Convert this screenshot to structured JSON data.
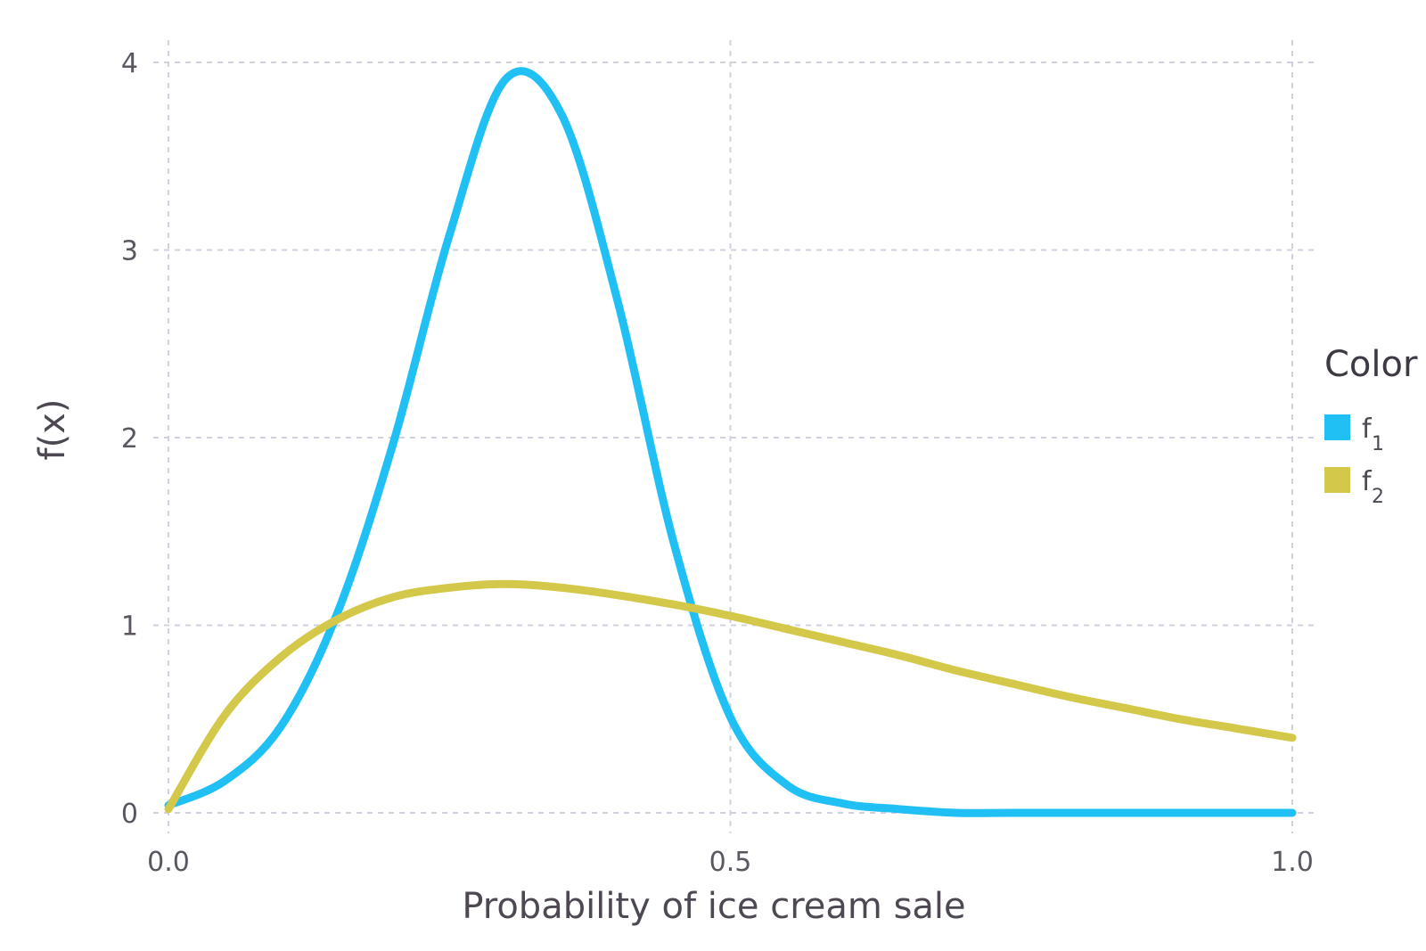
{
  "chart_data": {
    "type": "line",
    "xlabel": "Probability of ice cream sale",
    "ylabel": "f(x)",
    "xlim": [
      0.0,
      1.0
    ],
    "ylim": [
      0,
      4
    ],
    "x_ticks": [
      "0.0",
      "0.5",
      "1.0"
    ],
    "x_tick_values": [
      0.0,
      0.5,
      1.0
    ],
    "y_ticks": [
      "0",
      "1",
      "2",
      "3",
      "4"
    ],
    "y_tick_values": [
      0,
      1,
      2,
      3,
      4
    ],
    "grid": true,
    "legend": {
      "title": "Color",
      "placement": "right",
      "entries": [
        {
          "base": "f",
          "sub": "1",
          "color": "#20C0F5"
        },
        {
          "base": "f",
          "sub": "2",
          "color": "#D4C84A"
        }
      ]
    },
    "series": [
      {
        "color": "#20C0F5",
        "x": [
          0.0,
          0.05,
          0.1,
          0.15,
          0.2,
          0.25,
          0.3,
          0.35,
          0.4,
          0.45,
          0.5,
          0.55,
          0.6,
          0.65,
          0.7,
          0.75,
          0.8,
          0.85,
          0.9,
          0.95,
          1.0
        ],
        "y": [
          0.04,
          0.17,
          0.46,
          1.06,
          1.97,
          3.08,
          3.91,
          3.72,
          2.72,
          1.43,
          0.51,
          0.15,
          0.05,
          0.02,
          0.0,
          0.0,
          0.0,
          0.0,
          0.0,
          0.0,
          0.0
        ]
      },
      {
        "color": "#D4C84A",
        "x": [
          0.0,
          0.05,
          0.1,
          0.15,
          0.2,
          0.25,
          0.3,
          0.35,
          0.4,
          0.45,
          0.5,
          0.55,
          0.6,
          0.65,
          0.7,
          0.75,
          0.8,
          0.85,
          0.9,
          0.95,
          1.0
        ],
        "y": [
          0.02,
          0.52,
          0.83,
          1.03,
          1.15,
          1.2,
          1.22,
          1.2,
          1.16,
          1.11,
          1.05,
          0.98,
          0.91,
          0.84,
          0.76,
          0.69,
          0.62,
          0.56,
          0.5,
          0.45,
          0.4
        ]
      }
    ]
  }
}
